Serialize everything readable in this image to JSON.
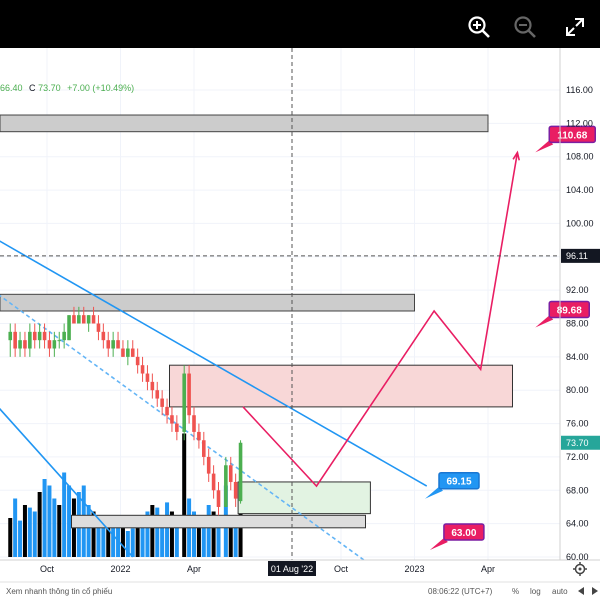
{
  "toolbar": {
    "zoom_in_icon": "zoom-in-icon",
    "zoom_out_icon": "zoom-out-icon",
    "fullscreen_icon": "expand-icon"
  },
  "legend": {
    "ohl_tail": "66.40",
    "close_label": "C",
    "close_value": "73.70",
    "change": "+7.00 (+10.49%)"
  },
  "status_bar": {
    "watermark": "Xem nhanh thông tin cổ phiếu",
    "time": "08:06:22 (UTC+7)",
    "percent_toggle": "%",
    "log_toggle": "log",
    "auto_toggle": "auto"
  },
  "chart_data": {
    "type": "candlestick",
    "y_axis": {
      "min": 60,
      "max": 116,
      "ticks": [
        60,
        64,
        68,
        72,
        76,
        80,
        84,
        88,
        92,
        96,
        100,
        104,
        108,
        112,
        116
      ],
      "tick_labels": [
        "60.00",
        "64.00",
        "68.00",
        "72.00",
        "76.00",
        "80.00",
        "84.00",
        "88.00",
        "92.00",
        "96.00",
        "100.00",
        "104.00",
        "108.00",
        "112.00",
        "116.00"
      ],
      "crosshair_label": "96.11",
      "last_price_label": "73.70"
    },
    "x_axis": {
      "labels": [
        {
          "text": "Oct",
          "t": 0.0
        },
        {
          "text": "2022",
          "t": 3.0
        },
        {
          "text": "Apr",
          "t": 6.0
        },
        {
          "text": "Oct",
          "t": 12.0
        },
        {
          "text": "2023",
          "t": 15.0
        },
        {
          "text": "Apr",
          "t": 18.0
        }
      ],
      "crosshair_label": "01 Aug '22",
      "crosshair_t": 10.0
    },
    "candles": [
      {
        "t": -1.5,
        "o": 86,
        "h": 88,
        "l": 84,
        "c": 87
      },
      {
        "t": -1.3,
        "o": 87,
        "h": 88,
        "l": 84,
        "c": 85
      },
      {
        "t": -1.1,
        "o": 85,
        "h": 87,
        "l": 84,
        "c": 86
      },
      {
        "t": -0.9,
        "o": 86,
        "h": 87,
        "l": 84,
        "c": 85
      },
      {
        "t": -0.7,
        "o": 85,
        "h": 88,
        "l": 84,
        "c": 87
      },
      {
        "t": -0.5,
        "o": 87,
        "h": 88,
        "l": 85,
        "c": 86
      },
      {
        "t": -0.3,
        "o": 86,
        "h": 88,
        "l": 85,
        "c": 87
      },
      {
        "t": -0.1,
        "o": 87,
        "h": 88,
        "l": 85,
        "c": 86
      },
      {
        "t": 0.1,
        "o": 86,
        "h": 87,
        "l": 84,
        "c": 85
      },
      {
        "t": 0.3,
        "o": 85,
        "h": 87,
        "l": 84,
        "c": 86
      },
      {
        "t": 0.5,
        "o": 86,
        "h": 87,
        "l": 85,
        "c": 86
      },
      {
        "t": 0.7,
        "o": 86,
        "h": 88,
        "l": 85,
        "c": 87
      },
      {
        "t": 0.9,
        "o": 86,
        "h": 89,
        "l": 86,
        "c": 89
      },
      {
        "t": 1.1,
        "o": 89,
        "h": 90,
        "l": 88,
        "c": 88
      },
      {
        "t": 1.3,
        "o": 88,
        "h": 90,
        "l": 88,
        "c": 89
      },
      {
        "t": 1.5,
        "o": 89,
        "h": 90,
        "l": 88,
        "c": 88
      },
      {
        "t": 1.7,
        "o": 88,
        "h": 89,
        "l": 87,
        "c": 89
      },
      {
        "t": 1.9,
        "o": 89,
        "h": 90,
        "l": 88,
        "c": 88
      },
      {
        "t": 2.1,
        "o": 88,
        "h": 89,
        "l": 86,
        "c": 87
      },
      {
        "t": 2.3,
        "o": 87,
        "h": 88,
        "l": 85,
        "c": 86
      },
      {
        "t": 2.5,
        "o": 86,
        "h": 87,
        "l": 84,
        "c": 85
      },
      {
        "t": 2.7,
        "o": 85,
        "h": 87,
        "l": 84,
        "c": 86
      },
      {
        "t": 2.9,
        "o": 86,
        "h": 87,
        "l": 85,
        "c": 85
      },
      {
        "t": 3.1,
        "o": 85,
        "h": 86,
        "l": 84,
        "c": 84
      },
      {
        "t": 3.3,
        "o": 84,
        "h": 86,
        "l": 83,
        "c": 85
      },
      {
        "t": 3.5,
        "o": 85,
        "h": 86,
        "l": 84,
        "c": 84
      },
      {
        "t": 3.7,
        "o": 84,
        "h": 85,
        "l": 82,
        "c": 83
      },
      {
        "t": 3.9,
        "o": 83,
        "h": 84,
        "l": 81,
        "c": 82
      },
      {
        "t": 4.1,
        "o": 82,
        "h": 83,
        "l": 80,
        "c": 81
      },
      {
        "t": 4.3,
        "o": 81,
        "h": 82,
        "l": 79,
        "c": 80
      },
      {
        "t": 4.5,
        "o": 80,
        "h": 81,
        "l": 78,
        "c": 79
      },
      {
        "t": 4.7,
        "o": 79,
        "h": 80,
        "l": 77,
        "c": 78
      },
      {
        "t": 4.9,
        "o": 78,
        "h": 79,
        "l": 76,
        "c": 77
      },
      {
        "t": 5.1,
        "o": 77,
        "h": 78,
        "l": 75,
        "c": 76
      },
      {
        "t": 5.3,
        "o": 76,
        "h": 77,
        "l": 74,
        "c": 75
      },
      {
        "t": 5.6,
        "o": 75,
        "h": 83,
        "l": 74,
        "c": 82
      },
      {
        "t": 5.8,
        "o": 82,
        "h": 83,
        "l": 76,
        "c": 77
      },
      {
        "t": 6.0,
        "o": 77,
        "h": 78,
        "l": 74,
        "c": 75
      },
      {
        "t": 6.2,
        "o": 75,
        "h": 76,
        "l": 73,
        "c": 74
      },
      {
        "t": 6.4,
        "o": 74,
        "h": 75,
        "l": 71,
        "c": 72
      },
      {
        "t": 6.6,
        "o": 72,
        "h": 73,
        "l": 69,
        "c": 70
      },
      {
        "t": 6.8,
        "o": 70,
        "h": 71,
        "l": 67,
        "c": 68
      },
      {
        "t": 7.0,
        "o": 68,
        "h": 69,
        "l": 65,
        "c": 66
      },
      {
        "t": 7.3,
        "o": 66,
        "h": 72,
        "l": 66,
        "c": 71
      },
      {
        "t": 7.5,
        "o": 71,
        "h": 72,
        "l": 68,
        "c": 69
      },
      {
        "t": 7.7,
        "o": 69,
        "h": 70,
        "l": 66,
        "c": 67
      },
      {
        "t": 7.9,
        "o": 66.7,
        "h": 74,
        "l": 66.4,
        "c": 73.7
      }
    ],
    "volume_bars": [
      {
        "t": -1.5,
        "v": 0.3,
        "c": "#000000"
      },
      {
        "t": -1.3,
        "v": 0.45,
        "c": "#2196F3"
      },
      {
        "t": -1.1,
        "v": 0.28,
        "c": "#2196F3"
      },
      {
        "t": -0.9,
        "v": 0.4,
        "c": "#000000"
      },
      {
        "t": -0.7,
        "v": 0.38,
        "c": "#2196F3"
      },
      {
        "t": -0.5,
        "v": 0.35,
        "c": "#2196F3"
      },
      {
        "t": -0.3,
        "v": 0.5,
        "c": "#000000"
      },
      {
        "t": -0.1,
        "v": 0.6,
        "c": "#2196F3"
      },
      {
        "t": 0.1,
        "v": 0.55,
        "c": "#2196F3"
      },
      {
        "t": 0.3,
        "v": 0.45,
        "c": "#2196F3"
      },
      {
        "t": 0.5,
        "v": 0.4,
        "c": "#000000"
      },
      {
        "t": 0.7,
        "v": 0.65,
        "c": "#2196F3"
      },
      {
        "t": 0.9,
        "v": 0.55,
        "c": "#2196F3"
      },
      {
        "t": 1.1,
        "v": 0.45,
        "c": "#000000"
      },
      {
        "t": 1.3,
        "v": 0.5,
        "c": "#2196F3"
      },
      {
        "t": 1.5,
        "v": 0.55,
        "c": "#2196F3"
      },
      {
        "t": 1.7,
        "v": 0.4,
        "c": "#2196F3"
      },
      {
        "t": 1.9,
        "v": 0.35,
        "c": "#000000"
      },
      {
        "t": 2.1,
        "v": 0.3,
        "c": "#2196F3"
      },
      {
        "t": 2.3,
        "v": 0.28,
        "c": "#2196F3"
      },
      {
        "t": 2.5,
        "v": 0.25,
        "c": "#000000"
      },
      {
        "t": 2.7,
        "v": 0.3,
        "c": "#2196F3"
      },
      {
        "t": 2.9,
        "v": 0.32,
        "c": "#2196F3"
      },
      {
        "t": 3.1,
        "v": 0.25,
        "c": "#000000"
      },
      {
        "t": 3.3,
        "v": 0.2,
        "c": "#2196F3"
      },
      {
        "t": 3.5,
        "v": 0.22,
        "c": "#2196F3"
      },
      {
        "t": 3.7,
        "v": 0.28,
        "c": "#000000"
      },
      {
        "t": 3.9,
        "v": 0.3,
        "c": "#2196F3"
      },
      {
        "t": 4.1,
        "v": 0.35,
        "c": "#2196F3"
      },
      {
        "t": 4.3,
        "v": 0.4,
        "c": "#000000"
      },
      {
        "t": 4.5,
        "v": 0.38,
        "c": "#2196F3"
      },
      {
        "t": 4.7,
        "v": 0.3,
        "c": "#2196F3"
      },
      {
        "t": 4.9,
        "v": 0.42,
        "c": "#2196F3"
      },
      {
        "t": 5.1,
        "v": 0.35,
        "c": "#000000"
      },
      {
        "t": 5.3,
        "v": 0.3,
        "c": "#2196F3"
      },
      {
        "t": 5.6,
        "v": 0.95,
        "c": "#000000"
      },
      {
        "t": 5.8,
        "v": 0.45,
        "c": "#2196F3"
      },
      {
        "t": 6.0,
        "v": 0.35,
        "c": "#2196F3"
      },
      {
        "t": 6.2,
        "v": 0.3,
        "c": "#000000"
      },
      {
        "t": 6.4,
        "v": 0.28,
        "c": "#2196F3"
      },
      {
        "t": 6.6,
        "v": 0.4,
        "c": "#2196F3"
      },
      {
        "t": 6.8,
        "v": 0.35,
        "c": "#000000"
      },
      {
        "t": 7.0,
        "v": 0.3,
        "c": "#2196F3"
      },
      {
        "t": 7.3,
        "v": 0.55,
        "c": "#2196F3"
      },
      {
        "t": 7.5,
        "v": 0.25,
        "c": "#000000"
      },
      {
        "t": 7.7,
        "v": 0.3,
        "c": "#2196F3"
      },
      {
        "t": 7.9,
        "v": 0.35,
        "c": "#000000"
      }
    ],
    "trendlines": [
      {
        "t1": -2.0,
        "p1": 98,
        "t2": 15.5,
        "p2": 68.5,
        "color": "#2196F3",
        "dash": false
      },
      {
        "t1": -2.0,
        "p1": 91.5,
        "t2": 13.0,
        "p2": 59.5,
        "color": "#64B5F6",
        "dash": true
      },
      {
        "t1": -2.0,
        "p1": 78,
        "t2": 3.5,
        "p2": 60.0,
        "color": "#2196F3",
        "dash": false
      }
    ],
    "zones": [
      {
        "t1": -2.0,
        "t2": 18.0,
        "p_low": 111.0,
        "p_high": 113.0,
        "fill": "#cccccc",
        "stroke": "#444444"
      },
      {
        "t1": -2.0,
        "t2": 15.0,
        "p_low": 89.5,
        "p_high": 91.5,
        "fill": "#cccccc",
        "stroke": "#444444"
      },
      {
        "t1": 5.0,
        "t2": 19.0,
        "p_low": 78.0,
        "p_high": 83.0,
        "fill": "#f8d7d7",
        "stroke": "#333333"
      },
      {
        "t1": 7.8,
        "t2": 13.2,
        "p_low": 65.2,
        "p_high": 69.0,
        "fill": "#e2f3e2",
        "stroke": "#333333"
      },
      {
        "t1": 1.0,
        "t2": 13.0,
        "p_low": 63.5,
        "p_high": 65.0,
        "fill": "#dddddd",
        "stroke": "#333333"
      }
    ],
    "projection": {
      "color": "#E91E63",
      "points": [
        {
          "t": 8.0,
          "p": 78.0
        },
        {
          "t": 11.0,
          "p": 68.5
        },
        {
          "t": 15.8,
          "p": 89.5
        },
        {
          "t": 17.7,
          "p": 82.5
        },
        {
          "t": 19.2,
          "p": 108.5
        }
      ]
    },
    "callouts": [
      {
        "t": 20.5,
        "p": 110.68,
        "label": "110.68",
        "fill": "#E91E63",
        "border": "#7B1FA2",
        "text": "#ffffff"
      },
      {
        "t": 20.5,
        "p": 89.68,
        "label": "89.68",
        "fill": "#E91E63",
        "border": "#7B1FA2",
        "text": "#ffffff"
      },
      {
        "t": 16.0,
        "p": 69.15,
        "label": "69.15",
        "fill": "#2196F3",
        "border": "#1976D2",
        "text": "#ffffff"
      },
      {
        "t": 16.2,
        "p": 63.0,
        "label": "63.00",
        "fill": "#E91E63",
        "border": "#7B1FA2",
        "text": "#ffffff"
      }
    ],
    "crosshair": {
      "t": 10.0,
      "p": 96.11
    },
    "colors": {
      "up": "#4CAF50",
      "down": "#EF5350",
      "last_price_bg": "#26A69A"
    },
    "grid": true
  }
}
